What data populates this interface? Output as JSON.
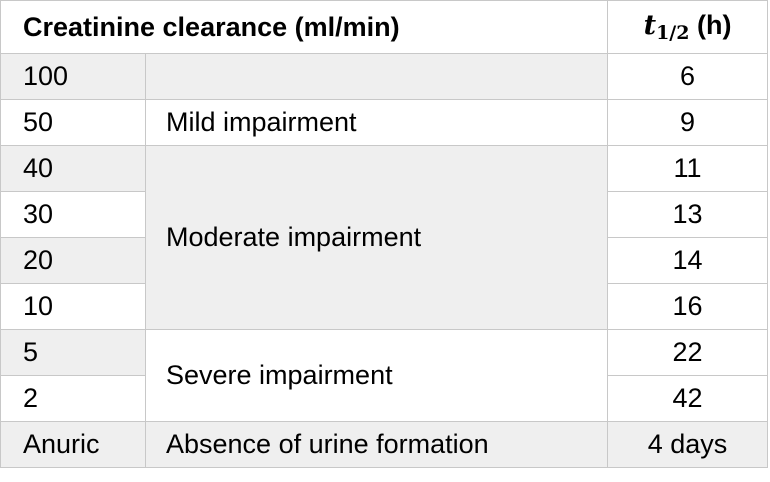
{
  "table": {
    "headers": {
      "clearance": "Creatinine clearance (ml/min)",
      "category": "",
      "half_life_symbol": "t",
      "half_life_subscript": "1/2",
      "half_life_unit": " (h)"
    },
    "rows": [
      {
        "clearance": "100",
        "half_life": "6"
      },
      {
        "clearance": "50",
        "half_life": "9"
      },
      {
        "clearance": "40",
        "half_life": "11"
      },
      {
        "clearance": "30",
        "half_life": "13"
      },
      {
        "clearance": "20",
        "half_life": "14"
      },
      {
        "clearance": "10",
        "half_life": "16"
      },
      {
        "clearance": "5",
        "half_life": "22"
      },
      {
        "clearance": "2",
        "half_life": "42"
      },
      {
        "clearance": "Anuric",
        "half_life": "4 days"
      }
    ],
    "categories": {
      "normal": "",
      "mild": "Mild impairment",
      "moderate": "Moderate impairment",
      "severe": "Severe impairment",
      "anuric": "Absence of urine formation"
    }
  }
}
